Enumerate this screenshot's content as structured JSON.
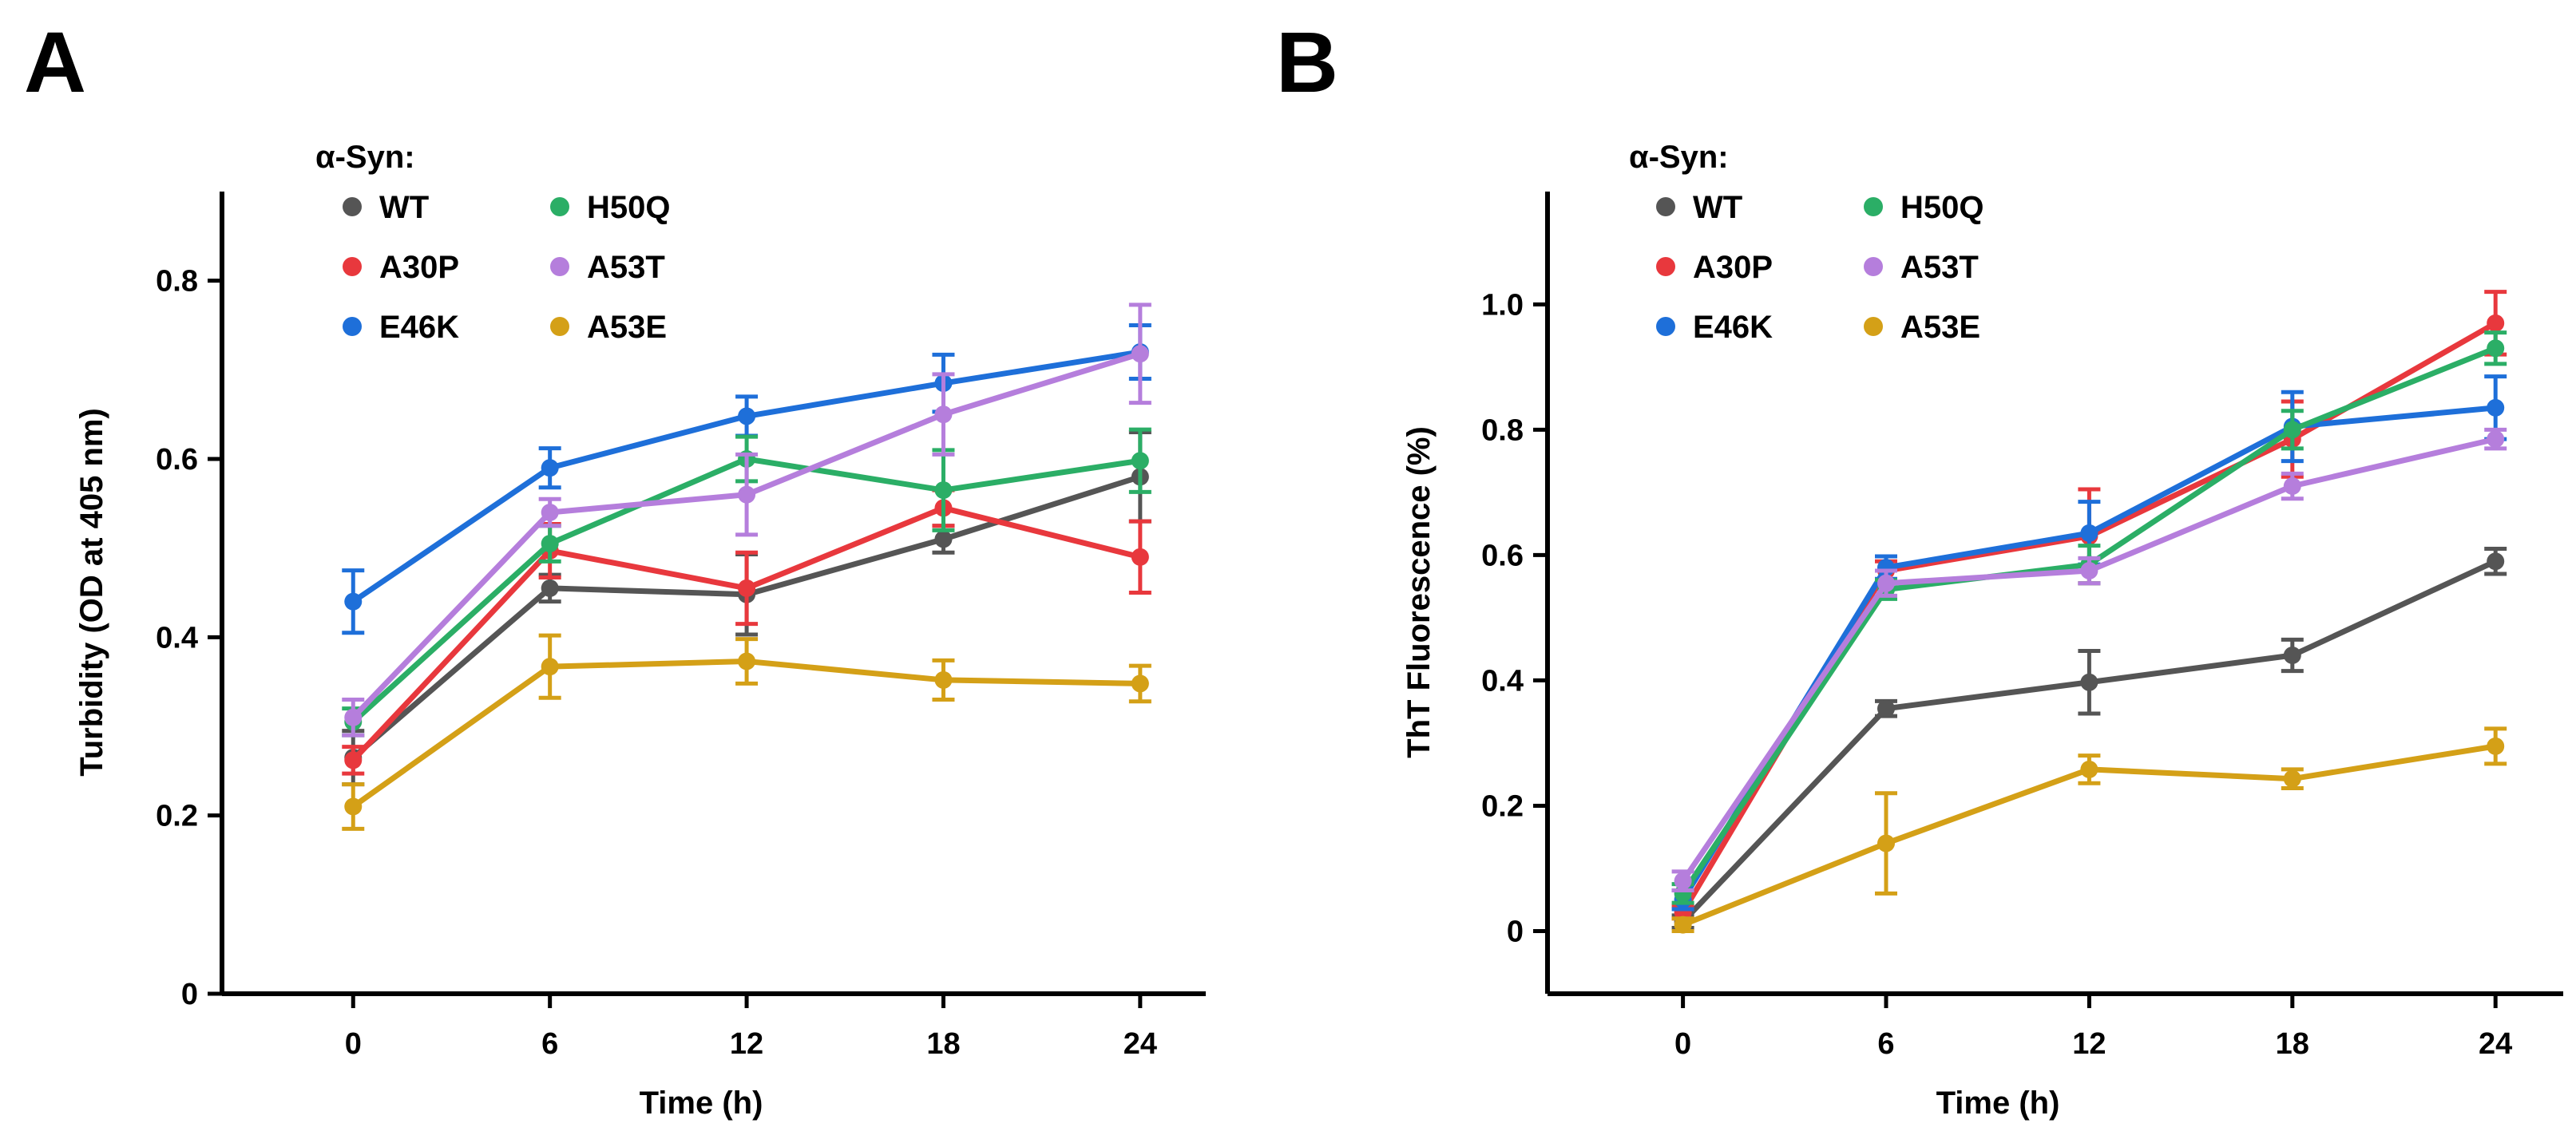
{
  "chart_data": [
    {
      "type": "line",
      "panel": "A",
      "title": "",
      "xlabel": "Time (h)",
      "ylabel": "Turbidity  (OD at 405 nm)",
      "x": [
        0,
        6,
        12,
        18,
        24
      ],
      "xlim": [
        -4,
        26
      ],
      "ylim": [
        0,
        0.9
      ],
      "xticks": [
        "0",
        "6",
        "12",
        "18",
        "24"
      ],
      "yticks": [
        {
          "value": 0,
          "label": "0"
        },
        {
          "value": 0.2,
          "label": "0.2"
        },
        {
          "value": 0.4,
          "label": "0.4"
        },
        {
          "value": 0.6,
          "label": "0.6"
        },
        {
          "value": 0.8,
          "label": "0.8"
        }
      ],
      "legend_title": "α-Syn:",
      "legend_position": "top-left",
      "series": [
        {
          "name": "WT",
          "color": "#555555",
          "values": [
            0.265,
            0.455,
            0.448,
            0.51,
            0.58
          ],
          "errors": [
            0.03,
            0.015,
            0.045,
            0.015,
            0.05
          ]
        },
        {
          "name": "A30P",
          "color": "#E8383D",
          "values": [
            0.262,
            0.497,
            0.455,
            0.545,
            0.49
          ],
          "errors": [
            0.015,
            0.03,
            0.04,
            0.02,
            0.04
          ]
        },
        {
          "name": "E46K",
          "color": "#1E6FD9",
          "values": [
            0.44,
            0.59,
            0.648,
            0.685,
            0.72
          ],
          "errors": [
            0.035,
            0.022,
            0.022,
            0.032,
            0.03
          ]
        },
        {
          "name": "H50Q",
          "color": "#2BAE66",
          "values": [
            0.305,
            0.505,
            0.6,
            0.565,
            0.598
          ],
          "errors": [
            0.015,
            0.02,
            0.025,
            0.045,
            0.035
          ]
        },
        {
          "name": "A53T",
          "color": "#B57EDC",
          "values": [
            0.31,
            0.54,
            0.56,
            0.65,
            0.718
          ],
          "errors": [
            0.02,
            0.015,
            0.045,
            0.045,
            0.055
          ]
        },
        {
          "name": "A53E",
          "color": "#D4A017",
          "values": [
            0.21,
            0.367,
            0.373,
            0.352,
            0.348
          ],
          "errors": [
            0.025,
            0.035,
            0.025,
            0.022,
            0.02
          ]
        }
      ]
    },
    {
      "type": "line",
      "panel": "B",
      "title": "",
      "xlabel": "Time (h)",
      "ylabel": "ThT  Fluorescence (%)",
      "x": [
        0,
        6,
        12,
        18,
        24
      ],
      "xlim": [
        -4,
        26
      ],
      "ylim": [
        -0.1,
        1.18
      ],
      "xticks": [
        "0",
        "6",
        "12",
        "18",
        "24"
      ],
      "yticks": [
        {
          "value": 0,
          "label": "0"
        },
        {
          "value": 0.2,
          "label": "0.2"
        },
        {
          "value": 0.4,
          "label": "0.4"
        },
        {
          "value": 0.6,
          "label": "0.6"
        },
        {
          "value": 0.8,
          "label": "0.8"
        },
        {
          "value": 1.0,
          "label": "1.0"
        }
      ],
      "legend_title": "α-Syn:",
      "legend_position": "top-left",
      "series": [
        {
          "name": "WT",
          "color": "#555555",
          "values": [
            0.015,
            0.355,
            0.397,
            0.44,
            0.59
          ],
          "errors": [
            0.01,
            0.012,
            0.05,
            0.025,
            0.02
          ]
        },
        {
          "name": "A30P",
          "color": "#E8383D",
          "values": [
            0.03,
            0.575,
            0.63,
            0.785,
            0.97
          ],
          "errors": [
            0.01,
            0.015,
            0.075,
            0.06,
            0.05
          ]
        },
        {
          "name": "E46K",
          "color": "#1E6FD9",
          "values": [
            0.05,
            0.58,
            0.635,
            0.805,
            0.835
          ],
          "errors": [
            0.015,
            0.018,
            0.05,
            0.055,
            0.05
          ]
        },
        {
          "name": "H50Q",
          "color": "#2BAE66",
          "values": [
            0.06,
            0.545,
            0.585,
            0.8,
            0.93
          ],
          "errors": [
            0.015,
            0.015,
            0.03,
            0.03,
            0.025
          ]
        },
        {
          "name": "A53T",
          "color": "#B57EDC",
          "values": [
            0.08,
            0.555,
            0.575,
            0.71,
            0.785
          ],
          "errors": [
            0.015,
            0.02,
            0.02,
            0.02,
            0.015
          ]
        },
        {
          "name": "A53E",
          "color": "#D4A017",
          "values": [
            0.01,
            0.14,
            0.258,
            0.243,
            0.295
          ],
          "errors": [
            0.01,
            0.08,
            0.022,
            0.015,
            0.028
          ]
        }
      ]
    }
  ]
}
